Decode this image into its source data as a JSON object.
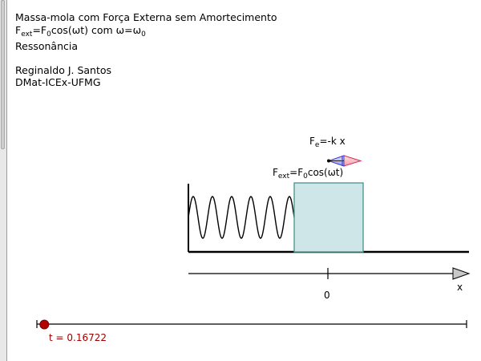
{
  "header": {
    "title": "Massa-mola com Força Externa sem Amortecimento",
    "formula": {
      "f": "F",
      "ext": "ext",
      "eq_f": "=F",
      "zero": "0",
      "cos_com": "cos(ωt) com ω=ω",
      "omega_zero": "0"
    },
    "subtitle": "Ressonância",
    "author": "Reginaldo J. Santos",
    "affiliation": "DMat-ICEx-UFMG"
  },
  "scene": {
    "spring_force": {
      "f": "F",
      "sub": "e",
      "rest": "=-k x"
    },
    "external_force": {
      "f": "F",
      "sub": "ext",
      "eq_f": "=F",
      "zero": "0",
      "rest": "cos(ωt)"
    },
    "axis": {
      "origin_label": "0",
      "x_label": "x"
    },
    "colors": {
      "mass_fill": "#cfe6e8",
      "mass_stroke": "#4f9a93",
      "spring_force_vector": "#4040c0",
      "external_force_vector": "#d03050",
      "slider_point": "#b00000"
    }
  },
  "time_slider": {
    "label": "t = 0.16722",
    "value": 0.16722,
    "min": 0,
    "max": 1
  }
}
